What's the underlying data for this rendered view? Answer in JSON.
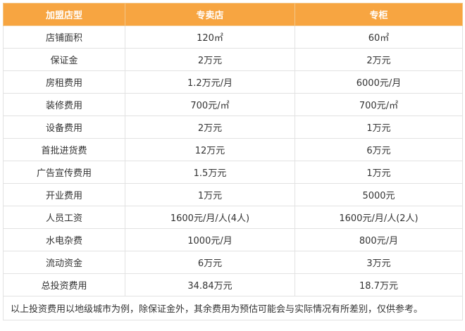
{
  "table": {
    "headers": [
      "加盟店型",
      "专卖店",
      "专柜"
    ],
    "rows": [
      [
        "店铺面积",
        "120㎡",
        "60㎡"
      ],
      [
        "保证金",
        "2万元",
        "2万元"
      ],
      [
        "房租费用",
        "1.2万元/月",
        "6000元/月"
      ],
      [
        "装修费用",
        "700元/㎡",
        "700元/㎡"
      ],
      [
        "设备费用",
        "2万元",
        "1万元"
      ],
      [
        "首批进货费",
        "12万元",
        "6万元"
      ],
      [
        "广告宣传费用",
        "1.5万元",
        "1万元"
      ],
      [
        "开业费用",
        "1万元",
        "5000元"
      ],
      [
        "人员工资",
        "1600元/月/人(4人)",
        "1600元/月/人(2人)"
      ],
      [
        "水电杂费",
        "1000元/月",
        "800元/月"
      ],
      [
        "流动资金",
        "6万元",
        "3万元"
      ],
      [
        "总投资费用",
        "34.84万元",
        "18.7万元"
      ]
    ],
    "note": "以上投资费用以地级城市为例，除保证金外，其余费用为预估可能会与实际情况有所差别，仅供参考。"
  },
  "colors": {
    "header_bg": "#f7a541",
    "header_text": "#ffffff",
    "border": "#e2e2e2",
    "text": "#333333"
  }
}
